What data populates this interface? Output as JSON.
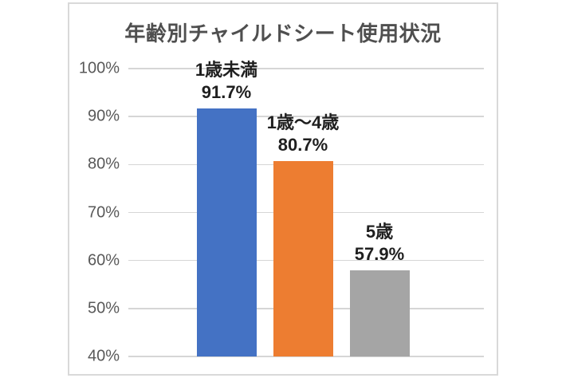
{
  "chart_data": {
    "type": "bar",
    "title": "年齢別チャイルドシート使用状況",
    "categories": [
      "1歳未満",
      "1歳～4歳",
      "5歳"
    ],
    "values": [
      91.7,
      80.7,
      57.9
    ],
    "value_labels": [
      "91.7%",
      "80.7%",
      "57.9%"
    ],
    "bar_colors": [
      "#4472C4",
      "#ED7D31",
      "#A5A5A5"
    ],
    "xlabel": "",
    "ylabel": "",
    "ylim": [
      40,
      100
    ],
    "yticks": [
      100,
      90,
      80,
      70,
      60,
      50,
      40
    ],
    "ytick_labels": [
      "100%",
      "90%",
      "80%",
      "70%",
      "60%",
      "50%",
      "40%"
    ],
    "grid": true,
    "legend": "none",
    "data_label_position": "above-bar",
    "colors": {
      "title": "#4f4f4f",
      "tick_label": "#595959",
      "data_label": "#1f1f1f",
      "gridline": "#d6d6d6",
      "frame_border": "#d9d9d9",
      "background": "#ffffff"
    }
  }
}
